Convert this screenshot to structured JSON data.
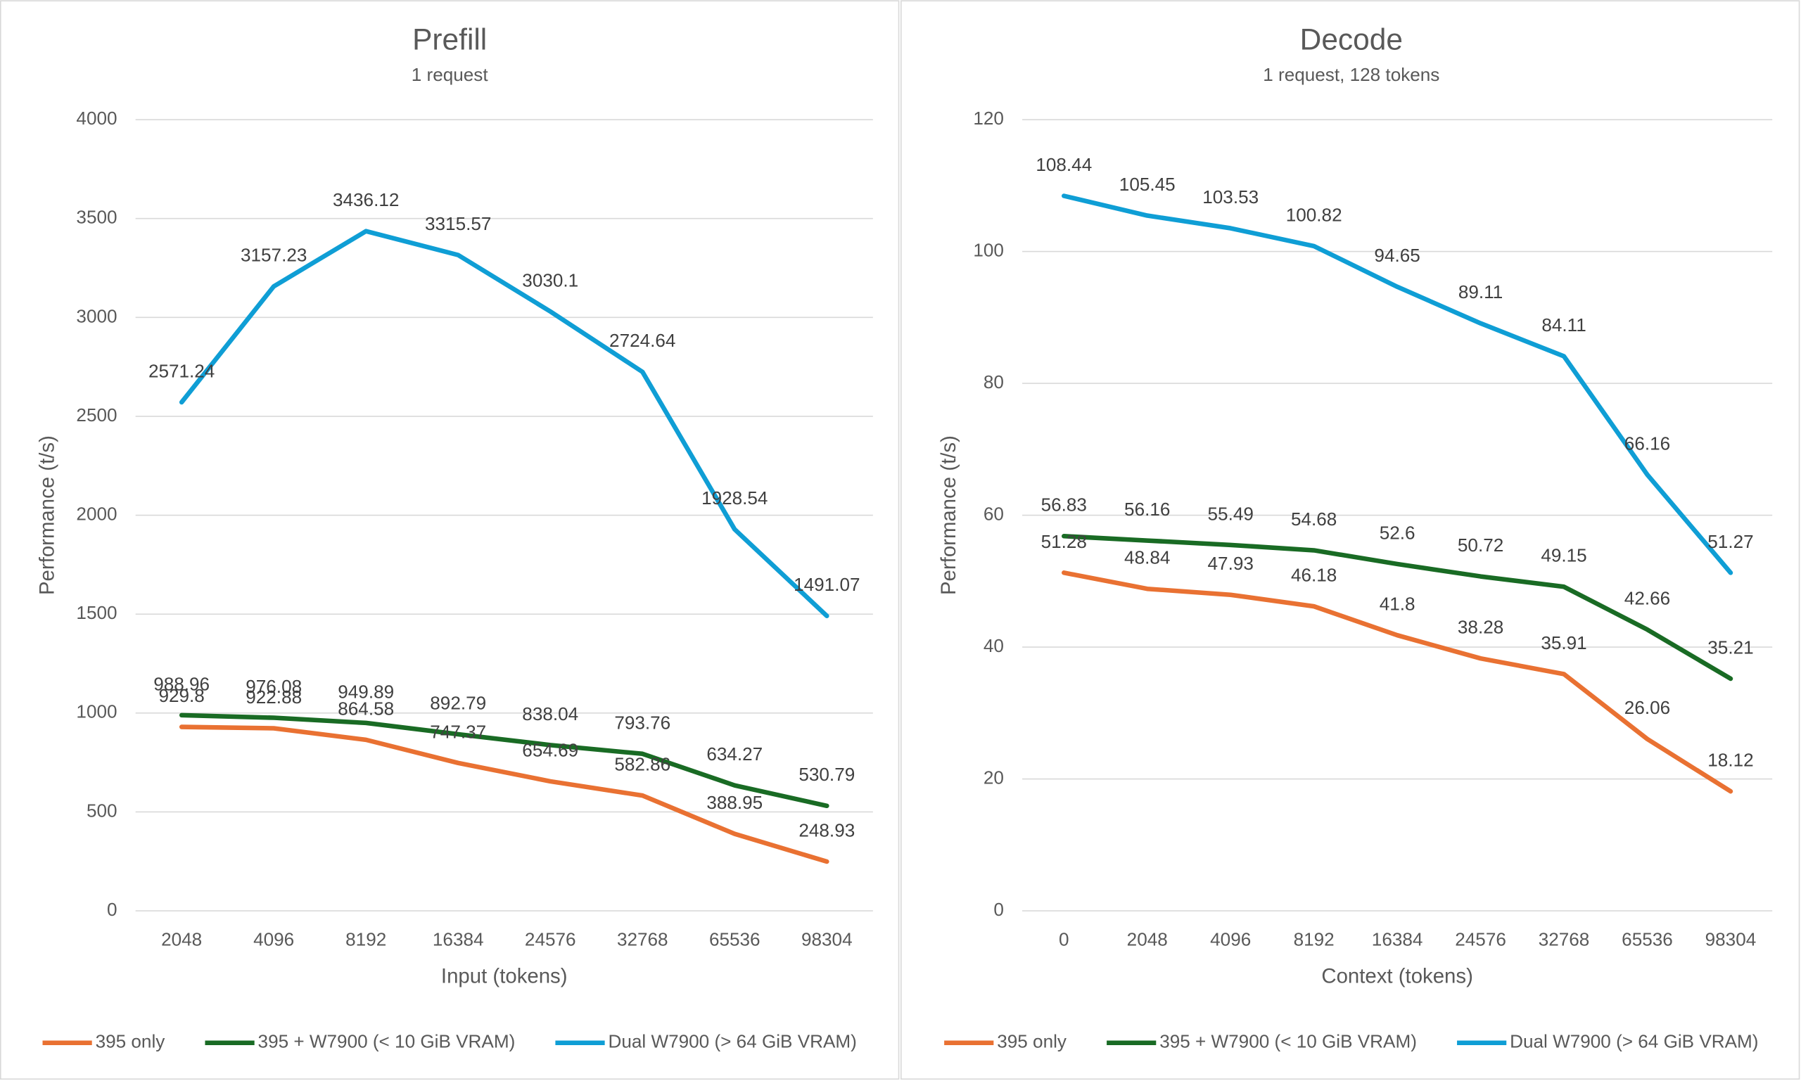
{
  "chart_data": [
    {
      "type": "line",
      "title": "Prefill",
      "subtitle": "1 request",
      "x_label": "Input (tokens)",
      "y_label": "Performance (t/s)",
      "categories": [
        "2048",
        "4096",
        "8192",
        "16384",
        "24576",
        "32768",
        "65536",
        "98304"
      ],
      "series": [
        {
          "name": "395 only",
          "color": "#e97132",
          "values": [
            929.8,
            922.88,
            864.58,
            747.37,
            654.69,
            582.86,
            388.95,
            248.93
          ]
        },
        {
          "name": "395 + W7900 (< 10 GiB VRAM)",
          "color": "#196b24",
          "values": [
            988.96,
            976.08,
            949.89,
            892.79,
            838.04,
            793.76,
            634.27,
            530.79
          ]
        },
        {
          "name": "Dual W7900 (> 64 GiB VRAM)",
          "color": "#0f9ed5",
          "values": [
            2571.24,
            3157.23,
            3436.12,
            3315.57,
            3030.1,
            2724.64,
            1928.54,
            1491.07
          ]
        }
      ],
      "ylim": [
        0,
        4000
      ],
      "yticks": [
        0,
        500,
        1000,
        1500,
        2000,
        2500,
        3000,
        3500,
        4000
      ],
      "grid": true
    },
    {
      "type": "line",
      "title": "Decode",
      "subtitle": "1 request, 128 tokens",
      "x_label": "Context (tokens)",
      "y_label": "Performance (t/s)",
      "categories": [
        "0",
        "2048",
        "4096",
        "8192",
        "16384",
        "24576",
        "32768",
        "65536",
        "98304"
      ],
      "series": [
        {
          "name": "395 only",
          "color": "#e97132",
          "values": [
            51.28,
            48.84,
            47.93,
            46.18,
            41.8,
            38.28,
            35.91,
            26.06,
            18.12
          ]
        },
        {
          "name": "395 + W7900 (< 10 GiB VRAM)",
          "color": "#196b24",
          "values": [
            56.83,
            56.16,
            55.49,
            54.68,
            52.6,
            50.72,
            49.15,
            42.66,
            35.21
          ]
        },
        {
          "name": "Dual W7900 (> 64 GiB VRAM)",
          "color": "#0f9ed5",
          "values": [
            108.44,
            105.45,
            103.53,
            100.82,
            94.65,
            89.11,
            84.11,
            66.16,
            51.27
          ]
        }
      ],
      "ylim": [
        0,
        120
      ],
      "yticks": [
        0,
        20,
        40,
        60,
        80,
        100,
        120
      ],
      "grid": true
    }
  ]
}
